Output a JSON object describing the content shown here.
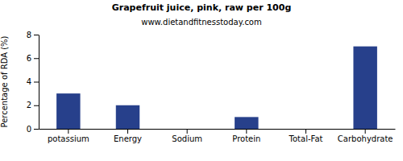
{
  "chart_data": {
    "type": "bar",
    "title": "Grapefruit juice, pink, raw per 100g",
    "subtitle": "www.dietandfitnesstoday.com",
    "y_label": "Percentage of RDA (%)",
    "categories": [
      "potassium",
      "Energy",
      "Sodium",
      "Protein",
      "Total-Fat",
      "Carbohydrate"
    ],
    "values": [
      3,
      2,
      0,
      1,
      0,
      7
    ],
    "color": "#27408b",
    "ylim": [
      0,
      8
    ],
    "yticks": [
      0,
      2,
      4,
      6,
      8
    ],
    "grid": false
  }
}
